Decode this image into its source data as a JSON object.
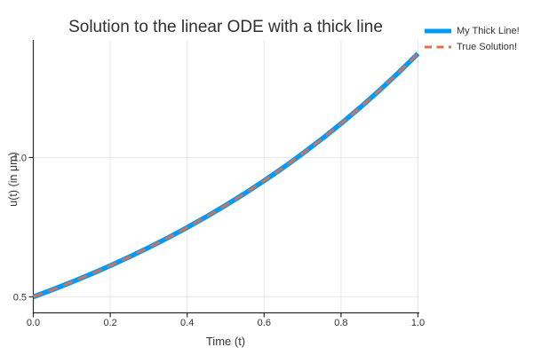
{
  "figure": {
    "background": "#FFFFFF"
  },
  "chart_data": {
    "type": "line",
    "title": "Solution to the linear ODE with a thick line",
    "xlabel": "Time (t)",
    "ylabel": "u(t) (in μm)",
    "xlim": [
      0.0,
      1.01
    ],
    "ylim": [
      0.44,
      1.42
    ],
    "grid": true,
    "legend_position": "outside-top-right",
    "x_ticks": [
      0.0,
      0.2,
      0.4,
      0.6,
      0.8,
      1.0
    ],
    "x_tick_labels": [
      "0.0",
      "0.2",
      "0.4",
      "0.6",
      "0.8",
      "1.0"
    ],
    "y_ticks": [
      0.5,
      1.0
    ],
    "y_tick_labels": [
      "0.5",
      "1.0"
    ],
    "x": [
      0.0,
      0.05,
      0.1,
      0.15,
      0.2,
      0.25,
      0.3,
      0.35,
      0.4,
      0.45,
      0.5,
      0.55,
      0.6,
      0.65,
      0.7,
      0.75,
      0.8,
      0.85,
      0.9,
      0.95,
      1.0
    ],
    "series": [
      {
        "name": "My Thick Line!",
        "color": "#009AFA",
        "style": "solid",
        "width": 5.5,
        "values": [
          0.5,
          0.5259,
          0.5531,
          0.5818,
          0.6119,
          0.6436,
          0.677,
          0.712,
          0.7489,
          0.7877,
          0.8285,
          0.8714,
          0.9166,
          0.964,
          1.014,
          1.0665,
          1.1217,
          1.1798,
          1.241,
          1.3052,
          1.3728
        ]
      },
      {
        "name": "True Solution!",
        "color": "#E36F47",
        "style": "dashed",
        "width": 2.6,
        "values": [
          0.5,
          0.5259,
          0.5531,
          0.5818,
          0.6119,
          0.6436,
          0.677,
          0.712,
          0.7489,
          0.7877,
          0.8285,
          0.8714,
          0.9166,
          0.964,
          1.014,
          1.0665,
          1.1217,
          1.1798,
          1.241,
          1.3052,
          1.3728
        ]
      }
    ],
    "colors": {
      "grid": "#E9E9E9",
      "axis": "#2A2A2A",
      "text": "#333333"
    }
  }
}
